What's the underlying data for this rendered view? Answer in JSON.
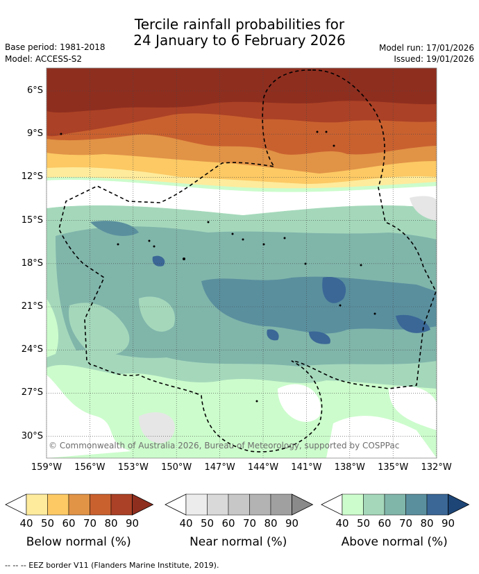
{
  "header": {
    "title_line1": "Tercile rainfall probabilities for",
    "title_line2": "24 January to 6 February 2026",
    "base_period": "Base period: 1981-2018",
    "model": "Model: ACCESS-S2",
    "model_run": "Model run: 17/01/2026",
    "issued": "Issued: 19/01/2026"
  },
  "map": {
    "lat_labels": [
      "6°S",
      "9°S",
      "12°S",
      "15°S",
      "18°S",
      "21°S",
      "24°S",
      "27°S",
      "30°S"
    ],
    "lon_labels": [
      "159°W",
      "156°W",
      "153°W",
      "150°W",
      "147°W",
      "144°W",
      "141°W",
      "138°W",
      "135°W",
      "132°W"
    ],
    "copyright": "© Commonwealth of Australia 2026, Bureau of Meteorology, supported by COSPPac"
  },
  "colorbars": [
    {
      "title": "Below normal (%)",
      "labels": [
        "40",
        "50",
        "60",
        "70",
        "80",
        "90"
      ],
      "colors": [
        "#ffffff",
        "#feeb9c",
        "#fcc964",
        "#e19346",
        "#c9612f",
        "#ab4126",
        "#8e2e1f"
      ]
    },
    {
      "title": "Near normal (%)",
      "labels": [
        "40",
        "50",
        "60",
        "70",
        "80",
        "90"
      ],
      "colors": [
        "#ffffff",
        "#ececec",
        "#d9d9d9",
        "#c7c7c7",
        "#b3b3b3",
        "#a0a0a0",
        "#8a8a8a"
      ]
    },
    {
      "title": "Above normal (%)",
      "labels": [
        "40",
        "50",
        "60",
        "70",
        "80",
        "90"
      ],
      "colors": [
        "#ffffff",
        "#ccfccc",
        "#a5d8bb",
        "#80b5aa",
        "#5a8f9e",
        "#3a6796",
        "#1d4677"
      ]
    }
  ],
  "footer": {
    "eez_note": "--  --  -- EEZ border V11 (Flanders Marine Institute, 2019)."
  }
}
